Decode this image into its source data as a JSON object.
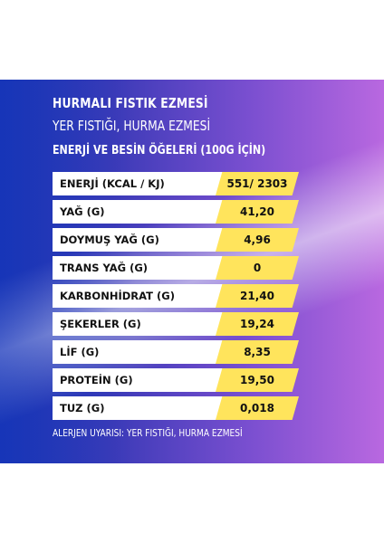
{
  "product": {
    "title": "HURMALI FISTIK EZMESİ",
    "subtitle": "YER FISTIĞI, HURMA EZMESİ"
  },
  "nutrition": {
    "heading": "ENERJİ VE BESİN ÖĞELERİ (100G İÇİN)",
    "rows": [
      {
        "label": "ENERJİ (KCAL / KJ)",
        "value": "551/ 2303"
      },
      {
        "label": "YAĞ (G)",
        "value": "41,20"
      },
      {
        "label": "DOYMUŞ YAĞ (G)",
        "value": "4,96"
      },
      {
        "label": "TRANS YAĞ (G)",
        "value": "0"
      },
      {
        "label": "KARBONHİDRAT (G)",
        "value": "21,40"
      },
      {
        "label": "ŞEKERLER (G)",
        "value": "19,24"
      },
      {
        "label": "LİF (G)",
        "value": "8,35"
      },
      {
        "label": "PROTEİN (G)",
        "value": "19,50"
      },
      {
        "label": "TUZ (G)",
        "value": "0,018"
      }
    ]
  },
  "allergen_text": "ALERJEN UYARISI: YER FISTIĞI, HURMA EZMESİ",
  "colors": {
    "background_left": "#1a39b0",
    "background_right": "#b968e0",
    "value_fill": "#ffe45c",
    "label_fill": "#ffffff"
  }
}
